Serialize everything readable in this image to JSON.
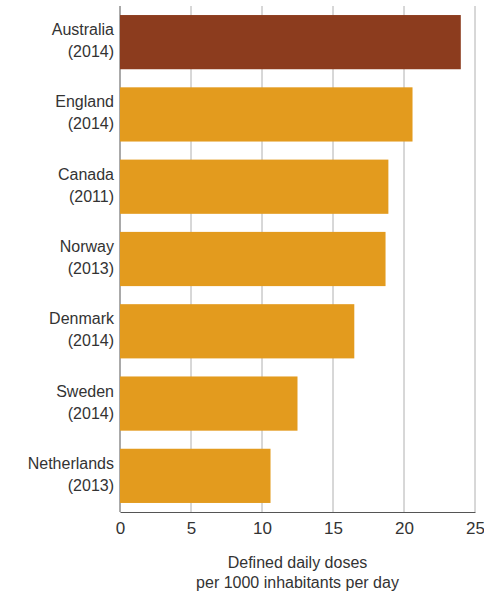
{
  "chart_data": {
    "type": "bar",
    "orientation": "horizontal",
    "categories": [
      "Australia\n(2014)",
      "England\n(2014)",
      "Canada\n(2011)",
      "Norway\n(2013)",
      "Denmark\n(2014)",
      "Sweden\n(2014)",
      "Netherlands\n(2013)"
    ],
    "values": [
      24,
      20.6,
      18.9,
      18.7,
      16.5,
      12.5,
      10.6
    ],
    "colors": [
      "#8c3c1e",
      "#e39b1e",
      "#e39b1e",
      "#e39b1e",
      "#e39b1e",
      "#e39b1e",
      "#e39b1e"
    ],
    "x_label": "Defined daily doses\nper 1000 inhabitants per day",
    "xlim": [
      0,
      25
    ],
    "xticks": [
      0,
      5,
      10,
      15,
      20,
      25
    ],
    "grid": true
  }
}
